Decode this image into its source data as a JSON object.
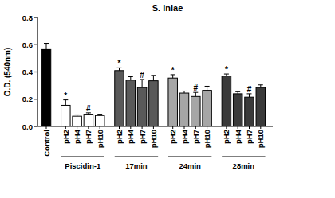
{
  "chart_data": {
    "type": "bar",
    "title": "S. iniae",
    "y_label": "O.D. (540nm)",
    "categories": [
      "Control",
      "pH2",
      "pH4",
      "pH7",
      "pH10",
      "pH2",
      "pH4",
      "pH7",
      "pH10",
      "pH2",
      "pH4",
      "pH7",
      "pH10",
      "pH2",
      "pH4",
      "pH7",
      "pH10"
    ],
    "groups": [
      null,
      "Piscidin-1",
      "Piscidin-1",
      "Piscidin-1",
      "Piscidin-1",
      "17min",
      "17min",
      "17min",
      "17min",
      "24min",
      "24min",
      "24min",
      "24min",
      "28min",
      "28min",
      "28min",
      "28min"
    ],
    "values": [
      0.57,
      0.155,
      0.075,
      0.09,
      0.08,
      0.41,
      0.34,
      0.285,
      0.335,
      0.355,
      0.245,
      0.22,
      0.265,
      0.37,
      0.24,
      0.215,
      0.285
    ],
    "errors": [
      0.04,
      0.04,
      0.01,
      0.01,
      0.01,
      0.02,
      0.025,
      0.06,
      0.04,
      0.025,
      0.015,
      0.03,
      0.03,
      0.015,
      0.015,
      0.025,
      0.02
    ],
    "annotations": [
      null,
      "*",
      null,
      "#",
      null,
      "*",
      null,
      "#",
      null,
      "*",
      null,
      "#",
      null,
      "*",
      null,
      "#",
      null
    ],
    "colors": [
      "#000000",
      "#ffffff",
      "#ffffff",
      "#ffffff",
      "#ffffff",
      "#595959",
      "#595959",
      "#595959",
      "#595959",
      "#a6a6a6",
      "#a6a6a6",
      "#a6a6a6",
      "#a6a6a6",
      "#3a3a3a",
      "#3a3a3a",
      "#3a3a3a",
      "#3a3a3a"
    ],
    "ylim": [
      0,
      0.8
    ],
    "yticks": [
      {
        "value": 0,
        "label": "0.0"
      },
      0.2,
      0.4,
      0.6,
      0.8
    ],
    "grid": false
  }
}
